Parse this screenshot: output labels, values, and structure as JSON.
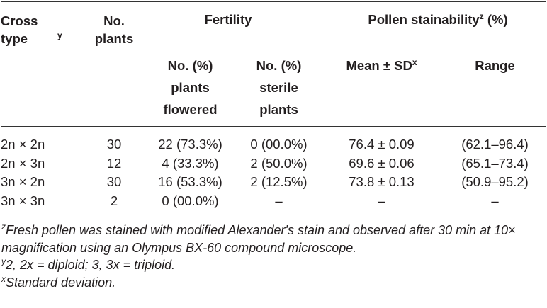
{
  "table": {
    "header": {
      "cross_type": {
        "text": "Cross type",
        "sup": "y"
      },
      "no_plants": "No. plants",
      "fertility": "Fertility",
      "pollen": {
        "text": "Pollen stainability",
        "sup": "z",
        "suffix": "(%)"
      },
      "flowered": "No. (%) plants flowered",
      "sterile": "No. (%) sterile plants",
      "mean": {
        "text": "Mean ± SD",
        "sup": "x"
      },
      "range": "Range"
    },
    "rows": [
      [
        "2n × 2n",
        "30",
        "22 (73.3%)",
        "0 (00.0%)",
        "76.4 ± 0.09",
        "(62.1–96.4)"
      ],
      [
        "2n × 3n",
        "12",
        "4 (33.3%)",
        "2 (50.0%)",
        "69.6 ± 0.06",
        "(65.1–73.4)"
      ],
      [
        "3n × 2n",
        "30",
        "16 (53.3%)",
        "2 (12.5%)",
        "73.8 ± 0.13",
        "(50.9–95.2)"
      ],
      [
        "3n × 3n",
        "2",
        "0 (00.0%)",
        "–",
        "–",
        "–"
      ]
    ],
    "footnotes": [
      {
        "mark": "z",
        "text": "Fresh pollen was stained with modified Alexander's stain and observed after 30 min at 10× magnification using an Olympus BX-60 compound microscope."
      },
      {
        "mark": "y",
        "text": "2, 2x = diploid; 3, 3x = triploid."
      },
      {
        "mark": "x",
        "text": "Standard deviation."
      }
    ]
  }
}
